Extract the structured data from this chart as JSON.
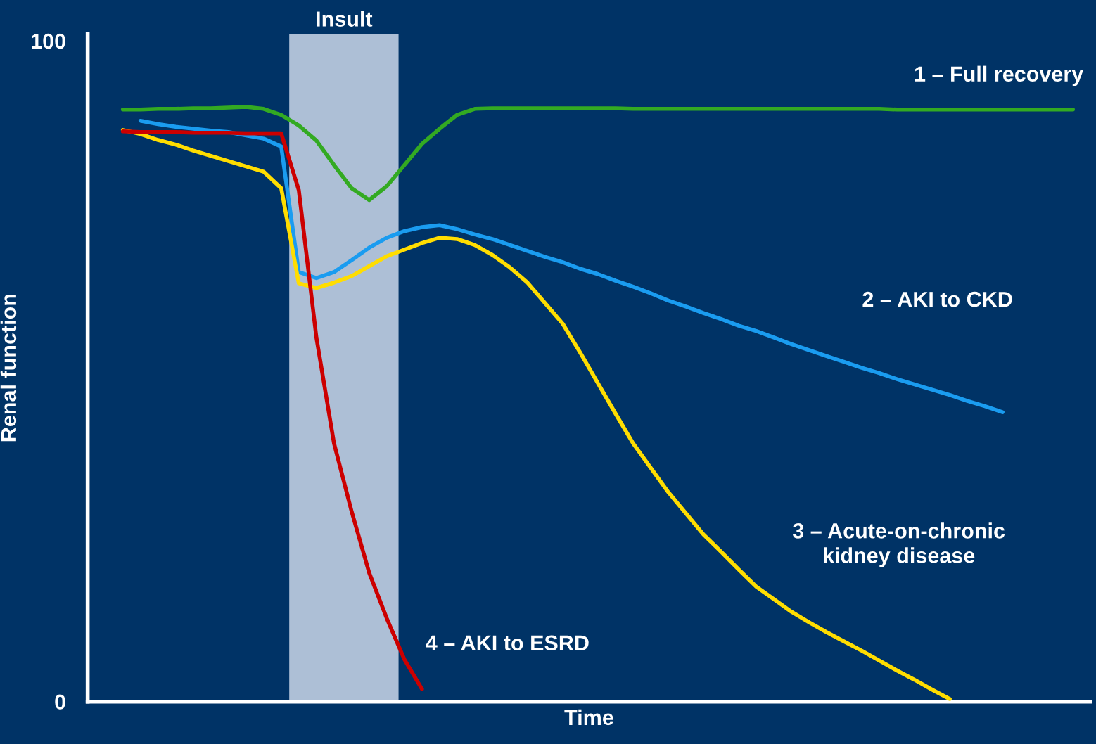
{
  "chart_data": {
    "type": "line",
    "xlabel": "Time",
    "ylabel": "Renal function",
    "categories": [
      null,
      null,
      null,
      null,
      null,
      null,
      null,
      null,
      null,
      null,
      null,
      null,
      null,
      null,
      null,
      null,
      null,
      null,
      null,
      null,
      null,
      null,
      null,
      null,
      null,
      null,
      null,
      null,
      null,
      null,
      null,
      null,
      null,
      null,
      null,
      null,
      null,
      null,
      null,
      null,
      null,
      null,
      null,
      null,
      null,
      null,
      null,
      null,
      null,
      null,
      null,
      null,
      null,
      null,
      null,
      null,
      null,
      null
    ],
    "ylim": [
      0,
      101
    ],
    "yticks": [
      0,
      100
    ],
    "tick_labels": "y",
    "grid": false,
    "legend": false,
    "annotations": [
      "Insult"
    ],
    "series": [
      {
        "name": "1 – Full recovery",
        "color": "#33aa22",
        "values": [
          null,
          null,
          89.6,
          89.6,
          89.7,
          89.7,
          89.8,
          89.8,
          89.9,
          90.0,
          89.7,
          88.8,
          87.2,
          84.9,
          81.2,
          77.7,
          75.9,
          78.0,
          81.2,
          84.4,
          86.7,
          88.8,
          89.7,
          89.8,
          89.8,
          89.8,
          89.8,
          89.8,
          89.8,
          89.8,
          89.8,
          89.7,
          89.7,
          89.7,
          89.7,
          89.7,
          89.7,
          89.7,
          89.7,
          89.7,
          89.7,
          89.7,
          89.7,
          89.7,
          89.7,
          89.7,
          89.6,
          89.6,
          89.6,
          89.6,
          89.6,
          89.6,
          89.6,
          89.6,
          89.6,
          89.6,
          89.6,
          null
        ]
      },
      {
        "name": "2 – AKI to CKD",
        "color": "#1a9cf0",
        "values": [
          null,
          null,
          null,
          87.9,
          87.4,
          87.0,
          86.7,
          86.4,
          86.2,
          85.7,
          85.2,
          84.0,
          65.0,
          64.1,
          65.0,
          66.8,
          68.7,
          70.2,
          71.2,
          71.8,
          72.1,
          71.5,
          70.7,
          70.0,
          69.1,
          68.2,
          67.3,
          66.5,
          65.5,
          64.7,
          63.7,
          62.8,
          61.8,
          60.7,
          59.8,
          58.8,
          57.9,
          56.9,
          56.1,
          55.1,
          54.1,
          53.2,
          52.3,
          51.4,
          50.5,
          49.7,
          48.8,
          48.0,
          47.2,
          46.4,
          45.5,
          44.7,
          43.8,
          null,
          null,
          null,
          null,
          null
        ]
      },
      {
        "name": "3 – Acute-on-chronic\nkidney disease",
        "color": "#ffdd00",
        "values": [
          null,
          null,
          86.5,
          85.9,
          85.0,
          84.3,
          83.4,
          82.6,
          81.8,
          81.0,
          80.2,
          77.7,
          63.3,
          62.6,
          63.4,
          64.4,
          65.9,
          67.4,
          68.4,
          69.4,
          70.2,
          70.0,
          69.1,
          67.6,
          65.7,
          63.4,
          60.3,
          57.2,
          52.8,
          48.2,
          43.6,
          39.1,
          35.4,
          31.7,
          28.5,
          25.3,
          22.7,
          20.0,
          17.4,
          15.5,
          13.6,
          12.0,
          10.5,
          9.1,
          7.7,
          6.2,
          4.7,
          3.3,
          1.8,
          0.4,
          null,
          null,
          null,
          null,
          null,
          null,
          null,
          null
        ]
      },
      {
        "name": "4 – AKI to ESRD",
        "color": "#cc0000",
        "values": [
          null,
          null,
          86.3,
          86.2,
          86.2,
          86.2,
          86.1,
          86.1,
          86.1,
          86.0,
          86.0,
          86.0,
          77.4,
          55.1,
          39.1,
          28.8,
          19.5,
          12.6,
          6.4,
          1.9,
          null,
          null,
          null,
          null,
          null,
          null,
          null,
          null,
          null,
          null,
          null,
          null,
          null,
          null,
          null,
          null,
          null,
          null,
          null,
          null,
          null,
          null,
          null,
          null,
          null,
          null,
          null,
          null,
          null,
          null,
          null,
          null,
          null,
          null,
          null,
          null,
          null,
          null
        ]
      }
    ]
  }
}
